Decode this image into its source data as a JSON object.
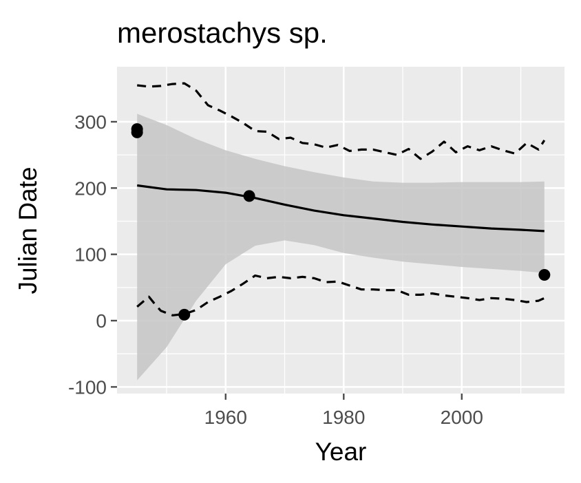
{
  "chart_data": {
    "type": "line",
    "title": "merostachys sp.",
    "xlabel": "Year",
    "ylabel": "Julian Date",
    "xlim": [
      1941.6,
      2017.4
    ],
    "ylim": [
      -110,
      383
    ],
    "x_ticks": [
      1960,
      1980,
      2000
    ],
    "y_ticks": [
      -100,
      0,
      100,
      200,
      300
    ],
    "grid": true,
    "legend": "none",
    "colors": {
      "panel": "#ebebeb",
      "grid": "#ffffff",
      "ribbon": "#c6c6c6",
      "line": "#000000",
      "points": "#000000",
      "ticks": "#4d4d4d"
    },
    "fit": {
      "x": [
        1945,
        1950,
        1955,
        1960,
        1965,
        1970,
        1975,
        1980,
        1985,
        1990,
        1995,
        2000,
        2005,
        2010,
        2014
      ],
      "y": [
        204,
        198,
        197,
        193,
        185,
        175,
        166,
        159,
        154,
        149,
        145,
        142,
        139,
        137,
        135
      ]
    },
    "confidence_band": {
      "x": [
        1945,
        1950,
        1955,
        1960,
        1965,
        1970,
        1975,
        1980,
        1985,
        1990,
        1995,
        2000,
        2005,
        2010,
        2014
      ],
      "upper": [
        312,
        295,
        274,
        257,
        244,
        233,
        224,
        216,
        210,
        208,
        208,
        209,
        209,
        209,
        210
      ],
      "lower": [
        -90,
        -40,
        30,
        85,
        113,
        121,
        114,
        102,
        95,
        89,
        85,
        81,
        78,
        75,
        72
      ]
    },
    "upper_bound": {
      "x": [
        1945,
        1947,
        1949,
        1951,
        1953,
        1955,
        1957,
        1959,
        1961,
        1963,
        1965,
        1967,
        1969,
        1971,
        1973,
        1975,
        1977,
        1979,
        1981,
        1983,
        1985,
        1987,
        1989,
        1991,
        1993,
        1995,
        1997,
        1999,
        2001,
        2003,
        2005,
        2007,
        2009,
        2011,
        2013,
        2014
      ],
      "y": [
        355,
        353,
        354,
        357,
        358,
        347,
        325,
        317,
        308,
        298,
        286,
        285,
        274,
        276,
        268,
        266,
        261,
        265,
        256,
        258,
        258,
        254,
        250,
        259,
        244,
        255,
        270,
        254,
        263,
        257,
        263,
        257,
        252,
        268,
        258,
        272
      ]
    },
    "lower_bound": {
      "x": [
        1945,
        1947,
        1948,
        1949,
        1951,
        1953,
        1955,
        1957,
        1959,
        1961,
        1963,
        1965,
        1967,
        1969,
        1971,
        1973,
        1975,
        1977,
        1979,
        1981,
        1983,
        1985,
        1987,
        1989,
        1991,
        1993,
        1995,
        1997,
        1999,
        2001,
        2003,
        2005,
        2007,
        2009,
        2011,
        2013,
        2014
      ],
      "y": [
        21,
        36,
        25,
        15,
        8,
        10,
        16,
        28,
        36,
        45,
        56,
        68,
        64,
        66,
        64,
        66,
        64,
        58,
        59,
        53,
        47,
        47,
        46,
        46,
        39,
        39,
        41,
        38,
        36,
        34,
        31,
        34,
        33,
        31,
        28,
        30,
        34
      ]
    },
    "points": {
      "x": [
        1945,
        1945,
        1953,
        1964,
        2014
      ],
      "y": [
        289,
        284,
        9,
        188,
        69
      ]
    }
  }
}
